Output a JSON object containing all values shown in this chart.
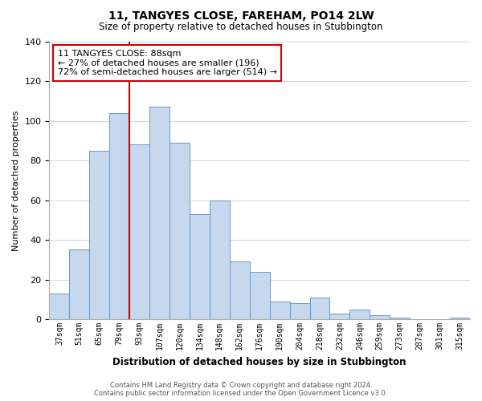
{
  "title": "11, TANGYES CLOSE, FAREHAM, PO14 2LW",
  "subtitle": "Size of property relative to detached houses in Stubbington",
  "xlabel": "Distribution of detached houses by size in Stubbington",
  "ylabel": "Number of detached properties",
  "bar_labels": [
    "37sqm",
    "51sqm",
    "65sqm",
    "79sqm",
    "93sqm",
    "107sqm",
    "120sqm",
    "134sqm",
    "148sqm",
    "162sqm",
    "176sqm",
    "190sqm",
    "204sqm",
    "218sqm",
    "232sqm",
    "246sqm",
    "259sqm",
    "273sqm",
    "287sqm",
    "301sqm",
    "315sqm"
  ],
  "bar_values": [
    13,
    35,
    85,
    104,
    88,
    107,
    89,
    53,
    60,
    29,
    24,
    9,
    8,
    11,
    3,
    5,
    2,
    1,
    0,
    0,
    1
  ],
  "bar_color": "#c5d8ed",
  "bar_edge_color": "#6699cc",
  "vline_x": 3.5,
  "vline_color": "#cc0000",
  "annotation_title": "11 TANGYES CLOSE: 88sqm",
  "annotation_line1": "← 27% of detached houses are smaller (196)",
  "annotation_line2": "72% of semi-detached houses are larger (514) →",
  "annotation_box_edge": "#cc0000",
  "ylim": [
    0,
    140
  ],
  "yticks": [
    0,
    20,
    40,
    60,
    80,
    100,
    120,
    140
  ],
  "footer1": "Contains HM Land Registry data © Crown copyright and database right 2024.",
  "footer2": "Contains public sector information licensed under the Open Government Licence v3.0."
}
